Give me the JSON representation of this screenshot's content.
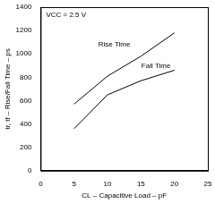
{
  "chart_data": {
    "type": "line",
    "x_label": "CL – Capacitive Load – pF",
    "y_label": "tr, tf – Rise/Fall Time – ps",
    "annotations": [
      "VCC = 2.5 V"
    ],
    "x": [
      5,
      10,
      15,
      20
    ],
    "series": [
      {
        "name": "Rise Time",
        "color": "#000000",
        "values": [
          570,
          810,
          980,
          1180
        ]
      },
      {
        "name": "Fall Time",
        "color": "#000000",
        "values": [
          360,
          650,
          770,
          860
        ]
      }
    ],
    "xlim": [
      0,
      25
    ],
    "xticks": [
      0,
      5,
      10,
      15,
      20,
      25
    ],
    "ylim": [
      0,
      1400
    ],
    "yticks": [
      0,
      200,
      400,
      600,
      800,
      1000,
      1200,
      1400
    ],
    "grid": false
  }
}
